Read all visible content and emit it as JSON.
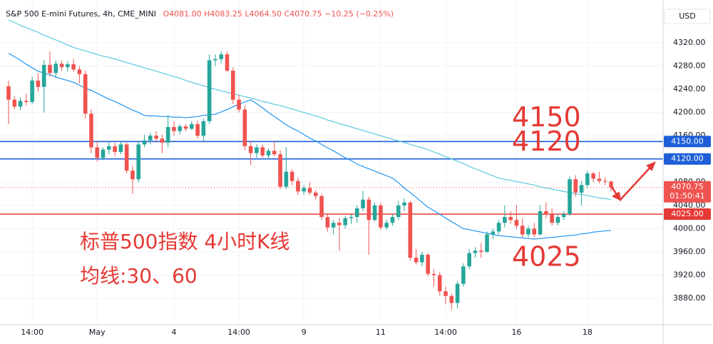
{
  "chart_data": {
    "type": "candlestick",
    "title": "S&P 500 E-mini Futures, 4h, CME_MINI",
    "ohlc_text": "O4081.00 H4083.25 L4064.50 C4070.75 −10.25 (−0.25%)",
    "currency": "USD",
    "up_color": "#26a69a",
    "down_color": "#ef5350",
    "categories": [
      null,
      null,
      null,
      null,
      "14:00",
      null,
      null,
      null,
      null,
      null,
      null,
      null,
      null,
      null,
      null,
      "May",
      null,
      null,
      null,
      null,
      null,
      null,
      null,
      null,
      null,
      null,
      null,
      null,
      "4",
      null,
      null,
      null,
      null,
      null,
      null,
      null,
      null,
      null,
      null,
      "14:00",
      null,
      null,
      null,
      null,
      null,
      null,
      null,
      null,
      null,
      null,
      "9",
      null,
      null,
      null,
      null,
      null,
      null,
      null,
      null,
      null,
      null,
      null,
      null,
      "11",
      null,
      null,
      null,
      null,
      null,
      null,
      null,
      null,
      null,
      null,
      "14:00",
      null,
      null,
      null,
      null,
      null,
      null,
      null,
      null,
      null,
      null,
      null,
      "16",
      null,
      null,
      null,
      null,
      null,
      null,
      null,
      null,
      null,
      null,
      null,
      "18",
      null,
      null,
      null,
      null
    ],
    "open": [
      4245,
      4222,
      4210,
      4220,
      4218,
      4255,
      4244,
      4282,
      4268,
      4284,
      4278,
      4283,
      4274,
      4266,
      4198,
      4140,
      4122,
      4136,
      4142,
      4132,
      4145,
      4100,
      4085,
      4145,
      4152,
      4160,
      4155,
      4148,
      4175,
      4168,
      4176,
      4172,
      4180,
      4160,
      4185,
      4290,
      4292,
      4300,
      4272,
      4222,
      4205,
      4142,
      4130,
      4140,
      4126,
      4134,
      4128,
      4072,
      4098,
      4082,
      4064,
      4070,
      4062,
      4056,
      4020,
      4002,
      4010,
      4006,
      4018,
      4020,
      4035,
      4050,
      4015,
      4040,
      4002,
      4010,
      4020,
      4040,
      4045,
      3950,
      3942,
      3955,
      3922,
      3920,
      3892,
      3884,
      3872,
      3905,
      3935,
      3958,
      3962,
      3960,
      3990,
      3995,
      4010,
      4020,
      4015,
      4005,
      3990,
      4000,
      3990,
      4030,
      4025,
      4010,
      4020,
      4025,
      4085,
      4062,
      4075,
      4095,
      4086,
      4082,
      4081
    ],
    "high": [
      4255,
      4228,
      4226,
      4232,
      4262,
      4268,
      4290,
      4305,
      4290,
      4290,
      4288,
      4292,
      4280,
      4272,
      4205,
      4150,
      4140,
      4150,
      4148,
      4150,
      4148,
      4108,
      4150,
      4162,
      4165,
      4168,
      4162,
      4195,
      4185,
      4180,
      4180,
      4185,
      4186,
      4190,
      4300,
      4300,
      4305,
      4305,
      4278,
      4230,
      4212,
      4150,
      4145,
      4145,
      4138,
      4150,
      4135,
      4140,
      4102,
      4088,
      4075,
      4080,
      4066,
      4060,
      4025,
      4015,
      4018,
      4022,
      4025,
      4040,
      4065,
      4055,
      4045,
      4045,
      4015,
      4025,
      4048,
      4052,
      4048,
      3965,
      3960,
      3958,
      3930,
      3925,
      3900,
      3888,
      3910,
      3940,
      3965,
      3968,
      3975,
      3995,
      4000,
      4015,
      4040,
      4030,
      4040,
      4018,
      4005,
      4010,
      4040,
      4045,
      4035,
      4025,
      4030,
      4090,
      4092,
      4082,
      4100,
      4098,
      4098,
      4088,
      4083.25
    ],
    "low": [
      4180,
      4205,
      4204,
      4212,
      4214,
      4236,
      4200,
      4262,
      4260,
      4272,
      4270,
      4270,
      4250,
      4190,
      4130,
      4115,
      4118,
      4128,
      4125,
      4128,
      4095,
      4060,
      4080,
      4140,
      4145,
      4148,
      4130,
      4140,
      4160,
      4162,
      4168,
      4170,
      4155,
      4150,
      4180,
      4280,
      4285,
      4270,
      4215,
      4200,
      4135,
      4110,
      4122,
      4122,
      4120,
      4125,
      4068,
      4068,
      4075,
      4058,
      4058,
      4058,
      4050,
      4015,
      3995,
      3990,
      3962,
      4000,
      4008,
      4010,
      4030,
      3955,
      4012,
      3998,
      3998,
      4005,
      4015,
      4030,
      3945,
      3938,
      3935,
      3918,
      3900,
      3885,
      3870,
      3860,
      3862,
      3900,
      3930,
      3950,
      3950,
      3958,
      3982,
      3990,
      4002,
      4008,
      4000,
      3985,
      3985,
      3985,
      3988,
      4018,
      4005,
      4005,
      4015,
      4022,
      4055,
      4040,
      4070,
      4080,
      4078,
      4075,
      4064.5
    ],
    "close": [
      4222,
      4210,
      4220,
      4218,
      4255,
      4244,
      4282,
      4268,
      4284,
      4278,
      4283,
      4274,
      4266,
      4198,
      4140,
      4122,
      4136,
      4142,
      4132,
      4145,
      4100,
      4085,
      4145,
      4152,
      4160,
      4155,
      4148,
      4175,
      4168,
      4176,
      4172,
      4180,
      4160,
      4185,
      4290,
      4292,
      4300,
      4272,
      4222,
      4205,
      4142,
      4130,
      4140,
      4126,
      4134,
      4128,
      4072,
      4098,
      4082,
      4064,
      4070,
      4062,
      4056,
      4020,
      4002,
      4010,
      4006,
      4018,
      4020,
      4035,
      4050,
      4015,
      4040,
      4002,
      4010,
      4020,
      4040,
      4045,
      3950,
      3942,
      3955,
      3922,
      3920,
      3892,
      3884,
      3872,
      3905,
      3935,
      3958,
      3962,
      3960,
      3990,
      3995,
      4010,
      4020,
      4015,
      4005,
      3990,
      4000,
      3990,
      4030,
      4025,
      4010,
      4020,
      4025,
      4085,
      4062,
      4075,
      4095,
      4086,
      4082,
      4081,
      4070.75
    ],
    "series": [
      {
        "color": "#5ec8e0",
        "values": [
          4359,
          4355,
          4350,
          4346,
          4342,
          4338,
          4333,
          4329,
          4325,
          4321,
          4316,
          4312,
          4309,
          4306,
          4303,
          4300,
          4297,
          4295,
          4292,
          4289,
          4286,
          4283,
          4280,
          4277,
          4274,
          4271,
          4268,
          4265,
          4262,
          4259,
          4255,
          4252,
          4249,
          4246,
          4243,
          4240,
          4237,
          4235,
          4232,
          4230,
          4227,
          4225,
          4222,
          4219,
          4217,
          4214,
          4212,
          4209,
          4206,
          4203,
          4200,
          4197,
          4194,
          4191,
          4187,
          4184,
          4181,
          4178,
          4175,
          4172,
          4169,
          4166,
          4163,
          4160,
          4157,
          4154,
          4151,
          4148,
          4145,
          4142,
          4139,
          4136,
          4132,
          4128,
          4124,
          4120,
          4116,
          4112,
          4107,
          4103,
          4099,
          4095,
          4091,
          4087,
          4085,
          4083,
          4081,
          4079,
          4077,
          4075,
          4072,
          4070,
          4068,
          4066,
          4064,
          4062,
          4060,
          4059,
          4057,
          4055,
          4053,
          4052,
          4050
        ]
      },
      {
        "color": "#2196f3",
        "values": [
          4302,
          4296,
          4290,
          4283,
          4277,
          4271,
          4268,
          4265,
          4261,
          4258,
          4255,
          4252,
          4247,
          4242,
          4238,
          4233,
          4228,
          4223,
          4219,
          4214,
          4209,
          4204,
          4200,
          4195,
          4194,
          4194,
          4193,
          4193,
          4192,
          4192,
          4191,
          4192,
          4193,
          4195,
          4196,
          4197,
          4201,
          4205,
          4210,
          4214,
          4218,
          4222,
          4215,
          4208,
          4200,
          4193,
          4186,
          4179,
          4173,
          4168,
          4162,
          4156,
          4151,
          4145,
          4139,
          4134,
          4128,
          4122,
          4117,
          4111,
          4107,
          4103,
          4099,
          4095,
          4091,
          4087,
          4079,
          4070,
          4062,
          4054,
          4045,
          4037,
          4031,
          4025,
          4018,
          4012,
          4006,
          4000,
          3998,
          3996,
          3994,
          3992,
          3990,
          3988,
          3987,
          3986,
          3985,
          3984,
          3983,
          3982,
          3983,
          3984,
          3985,
          3986,
          3987,
          3988,
          3989,
          3991,
          3992,
          3994,
          3995,
          3996,
          3997
        ]
      }
    ],
    "levels": [
      {
        "value": 4150,
        "label": "4150.00",
        "annotation": "4150",
        "color": "#1e5fd8"
      },
      {
        "value": 4120,
        "label": "4120.00",
        "annotation": "4120",
        "color": "#1e5fd8"
      },
      {
        "value": 4025,
        "label": "4025.00",
        "annotation": "4025",
        "color": "#e53935"
      }
    ],
    "last_price": {
      "value": 4070.75,
      "label": "4070.75",
      "countdown": "01:50:41",
      "color": "#ef5350"
    },
    "ylim": [
      3834.5,
      4393.7
    ],
    "yticks": [
      {
        "value": 3880,
        "label": "3880.00"
      },
      {
        "value": 3920,
        "label": "3920.00"
      },
      {
        "value": 3960,
        "label": "3960.00"
      },
      {
        "value": 4000,
        "label": "4000.00"
      },
      {
        "value": 4040,
        "label": "4040.00"
      },
      {
        "value": 4080,
        "label": "4080.00"
      },
      {
        "value": 4120,
        "label": "4120.00"
      },
      {
        "value": 4160,
        "label": "4160.00"
      },
      {
        "value": 4200,
        "label": "4200.00"
      },
      {
        "value": 4240,
        "label": "4240.00"
      },
      {
        "value": 4280,
        "label": "4280.00"
      },
      {
        "value": 4320,
        "label": "4320.00"
      }
    ],
    "grid": true,
    "annotations": [
      "标普500指数 4小时K线",
      "均线:30、60"
    ],
    "annotation_color": "#e53935"
  }
}
